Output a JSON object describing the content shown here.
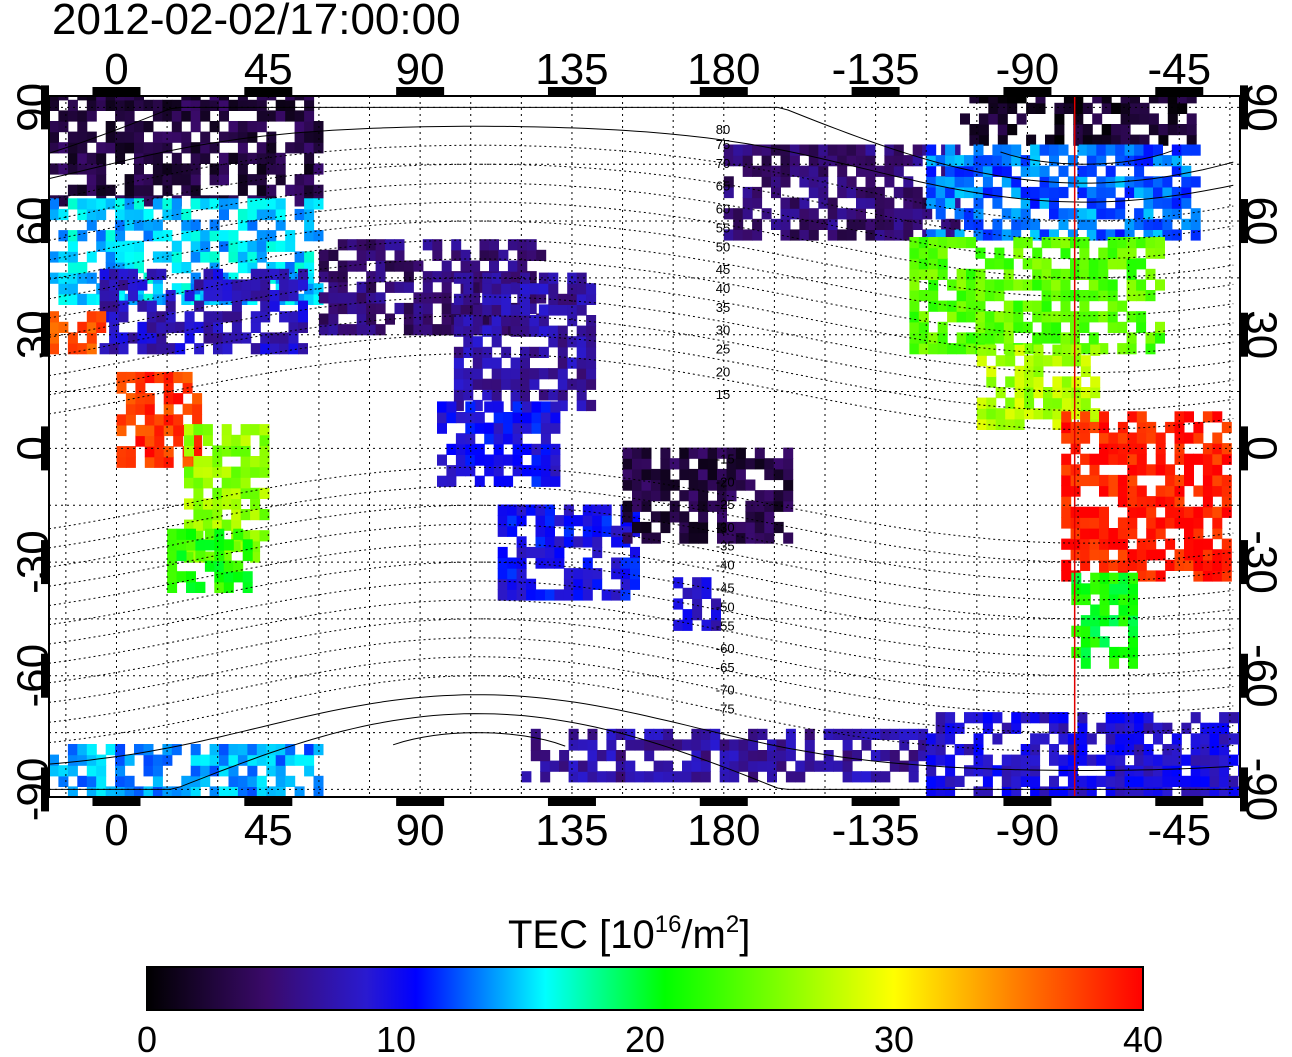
{
  "title": "2012-02-02/17:00:00",
  "map": {
    "lon_ticks": [
      {
        "lon": 0,
        "label": "0"
      },
      {
        "lon": 45,
        "label": "45"
      },
      {
        "lon": 90,
        "label": "90"
      },
      {
        "lon": 135,
        "label": "135"
      },
      {
        "lon": 180,
        "label": "180"
      },
      {
        "lon": 225,
        "label": "-135"
      },
      {
        "lon": 270,
        "label": "-90"
      },
      {
        "lon": 315,
        "label": "-45"
      }
    ],
    "lat_ticks": [
      {
        "lat": 90,
        "label": "90"
      },
      {
        "lat": 60,
        "label": "60"
      },
      {
        "lat": 30,
        "label": "30"
      },
      {
        "lat": 0,
        "label": "0"
      },
      {
        "lat": -30,
        "label": "-30"
      },
      {
        "lat": -60,
        "label": "-60"
      },
      {
        "lat": -90,
        "label": "-90"
      }
    ],
    "lon_range": [
      -20,
      333
    ],
    "lat_range": [
      -92,
      93
    ],
    "grid": true,
    "red_meridian_lon": 284,
    "contour_labels": [
      {
        "lon": 180,
        "lat": 83,
        "text": "80"
      },
      {
        "lon": 180,
        "lat": 79,
        "text": "75"
      },
      {
        "lon": 180,
        "lat": 74,
        "text": "70"
      },
      {
        "lon": 180,
        "lat": 68,
        "text": "65"
      },
      {
        "lon": 180,
        "lat": 62,
        "text": "60"
      },
      {
        "lon": 180,
        "lat": 57,
        "text": "55"
      },
      {
        "lon": 180,
        "lat": 52,
        "text": "50"
      },
      {
        "lon": 180,
        "lat": 46,
        "text": "45"
      },
      {
        "lon": 180,
        "lat": 41,
        "text": "40"
      },
      {
        "lon": 180,
        "lat": 36,
        "text": "35"
      },
      {
        "lon": 180,
        "lat": 30,
        "text": "30"
      },
      {
        "lon": 180,
        "lat": 25,
        "text": "25"
      },
      {
        "lon": 180,
        "lat": 19,
        "text": "20"
      },
      {
        "lon": 180,
        "lat": 13,
        "text": "15"
      },
      {
        "lon": 180,
        "lat": -4,
        "text": "-15"
      },
      {
        "lon": 180,
        "lat": -10,
        "text": "-20"
      },
      {
        "lon": 180,
        "lat": -16,
        "text": "-25"
      },
      {
        "lon": 180,
        "lat": -22,
        "text": "-30"
      },
      {
        "lon": 180,
        "lat": -27,
        "text": "-35"
      },
      {
        "lon": 180,
        "lat": -32,
        "text": "-40"
      },
      {
        "lon": 180,
        "lat": -38,
        "text": "-45"
      },
      {
        "lon": 180,
        "lat": -43,
        "text": "-50"
      },
      {
        "lon": 180,
        "lat": -48,
        "text": "-55"
      },
      {
        "lon": 180,
        "lat": -54,
        "text": "-60"
      },
      {
        "lon": 180,
        "lat": -59,
        "text": "-65"
      },
      {
        "lon": 180,
        "lat": -65,
        "text": "-70"
      },
      {
        "lon": 180,
        "lat": -70,
        "text": "-75"
      }
    ],
    "tec_regions": [
      {
        "lon": [
          -20,
          60
        ],
        "lat": [
          64,
          92
        ],
        "tec": 3
      },
      {
        "lon": [
          -20,
          60
        ],
        "lat": [
          38,
          64
        ],
        "tec": 15
      },
      {
        "lon": [
          -5,
          55
        ],
        "lat": [
          25,
          45
        ],
        "tec": 8
      },
      {
        "lon": [
          -20,
          -5
        ],
        "lat": [
          25,
          35
        ],
        "tec": 37
      },
      {
        "lon": [
          0,
          25
        ],
        "lat": [
          -5,
          20
        ],
        "tec": 38
      },
      {
        "lon": [
          20,
          45
        ],
        "lat": [
          -30,
          5
        ],
        "tec": 26
      },
      {
        "lon": [
          15,
          40
        ],
        "lat": [
          -38,
          -22
        ],
        "tec": 22
      },
      {
        "lon": [
          60,
          125
        ],
        "lat": [
          30,
          55
        ],
        "tec": 5
      },
      {
        "lon": [
          100,
          140
        ],
        "lat": [
          10,
          45
        ],
        "tec": 7
      },
      {
        "lon": [
          95,
          130
        ],
        "lat": [
          -10,
          10
        ],
        "tec": 10
      },
      {
        "lon": [
          113,
          155
        ],
        "lat": [
          -40,
          -15
        ],
        "tec": 10
      },
      {
        "lon": [
          165,
          178
        ],
        "lat": [
          -48,
          -35
        ],
        "tec": 9
      },
      {
        "lon": [
          150,
          200
        ],
        "lat": [
          -25,
          0
        ],
        "tec": 3
      },
      {
        "lon": [
          180,
          250
        ],
        "lat": [
          55,
          78
        ],
        "tec": 5
      },
      {
        "lon": [
          250,
          320
        ],
        "lat": [
          80,
          92
        ],
        "tec": 2
      },
      {
        "lon": [
          240,
          320
        ],
        "lat": [
          55,
          80
        ],
        "tec": 13
      },
      {
        "lon": [
          235,
          310
        ],
        "lat": [
          25,
          55
        ],
        "tec": 24
      },
      {
        "lon": [
          255,
          290
        ],
        "lat": [
          5,
          25
        ],
        "tec": 27
      },
      {
        "lon": [
          280,
          330
        ],
        "lat": [
          -35,
          8
        ],
        "tec": 39
      },
      {
        "lon": [
          283,
          300
        ],
        "lat": [
          -58,
          -35
        ],
        "tec": 21
      },
      {
        "lon": [
          -20,
          60
        ],
        "lat": [
          -92,
          -80
        ],
        "tec": 14
      },
      {
        "lon": [
          120,
          240
        ],
        "lat": [
          -88,
          -75
        ],
        "tec": 7
      },
      {
        "lon": [
          240,
          333
        ],
        "lat": [
          -92,
          -70
        ],
        "tec": 9
      }
    ]
  },
  "colorbar": {
    "title_prefix": "TEC  [10",
    "title_sup1": "16",
    "title_mid": "/m",
    "title_sup2": "2",
    "title_suffix": "]",
    "min": 0,
    "max": 40,
    "tick_labels": [
      "0",
      "10",
      "20",
      "30",
      "40"
    ],
    "colormap_stops": [
      "#000000",
      "#3a0a6a",
      "#2a1ad0",
      "#0000ff",
      "#00ffff",
      "#00ff00",
      "#ffff00",
      "#ff8000",
      "#ff0000"
    ]
  }
}
